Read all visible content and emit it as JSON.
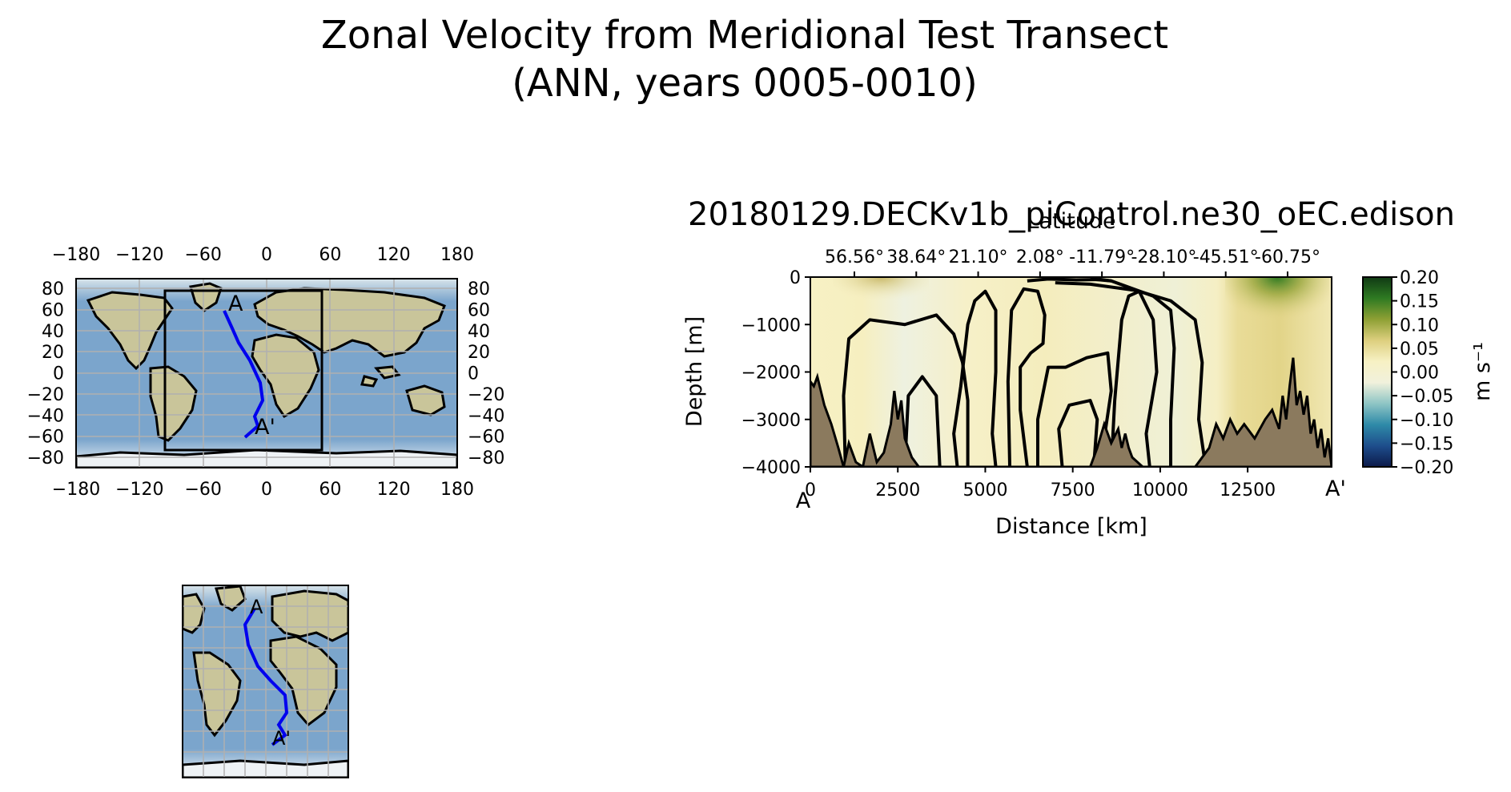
{
  "figure": {
    "title_line1": "Zonal Velocity from Meridional Test Transect",
    "title_line2": "(ANN, years 0005-0010)"
  },
  "map": {
    "lon_ticks": [
      "−180",
      "−120",
      "−60",
      "0",
      "60",
      "120",
      "180"
    ],
    "lat_ticks": [
      "80",
      "60",
      "40",
      "20",
      "0",
      "−20",
      "−40",
      "−60",
      "−80"
    ],
    "point_start_label": "A",
    "point_end_label": "A'",
    "transect_color": "#0000ee",
    "ocean_color": "#7ba5cc",
    "land_color": "#c9c59a"
  },
  "chart_data": {
    "type": "heatmap",
    "title": "20180129.DECKv1b_piControl.ne30_oEC.edison",
    "xlabel": "Distance [km]",
    "ylabel": "Depth [m]",
    "top_axis_label": "Latitude",
    "xlim": [
      0,
      14900
    ],
    "ylim": [
      -4000,
      0
    ],
    "x_ticks": [
      0,
      2500,
      5000,
      7500,
      10000,
      12500
    ],
    "x_tick_labels": [
      "0",
      "2500",
      "5000",
      "7500",
      "10000",
      "12500"
    ],
    "y_ticks": [
      0,
      -1000,
      -2000,
      -3000,
      -4000
    ],
    "y_tick_labels": [
      "0",
      "−1000",
      "−2000",
      "−3000",
      "−4000"
    ],
    "end_labels": {
      "start": "A",
      "end": "A'"
    },
    "top_tick_labels": [
      "56.56°",
      "38.64°",
      "21.10°",
      "2.08°",
      "-11.79°",
      "-28.10°",
      "-45.51°",
      "-60.75°"
    ],
    "colorbar": {
      "label": "m s⁻¹",
      "min": -0.2,
      "max": 0.2,
      "tick_labels": [
        "0.20",
        "0.15",
        "0.10",
        "0.05",
        "0.00",
        "−0.05",
        "−0.10",
        "−0.15",
        "−0.20"
      ],
      "colormap": [
        "#0c1a4a",
        "#1e4e8c",
        "#2e8aa8",
        "#8ec5c5",
        "#f1f1dc",
        "#f7f1c4",
        "#ddcf7e",
        "#8ea034",
        "#2e7a22",
        "#103a14"
      ]
    },
    "bathymetry": {
      "x": [
        0,
        100,
        200,
        300,
        400,
        600,
        800,
        950,
        1100,
        1300,
        1500,
        1700,
        1900,
        2100,
        2300,
        2400,
        2500,
        2600,
        2700,
        2900,
        3100,
        3300,
        3500,
        3700,
        3900,
        4100,
        4300,
        4500,
        5000,
        5500,
        6000,
        6500,
        7000,
        7500,
        8000,
        8200,
        8400,
        8600,
        8800,
        8900,
        9000,
        9100,
        9200,
        9500,
        10000,
        10500,
        11000,
        11400,
        11600,
        11800,
        12000,
        12200,
        12400,
        12700,
        13000,
        13200,
        13400,
        13500,
        13600,
        13700,
        13800,
        13900,
        14000,
        14100,
        14200,
        14300,
        14400,
        14500,
        14600,
        14700,
        14800,
        14900
      ],
      "depth": [
        -2200,
        -2300,
        -2100,
        -2400,
        -2700,
        -3100,
        -3600,
        -4000,
        -3500,
        -3900,
        -4000,
        -3300,
        -3900,
        -3700,
        -3100,
        -2400,
        -3000,
        -2600,
        -3400,
        -3800,
        -4000,
        -4000,
        -4000,
        -4000,
        -4000,
        -4000,
        -4000,
        -4000,
        -4000,
        -4000,
        -4000,
        -4000,
        -4000,
        -4000,
        -4000,
        -3600,
        -3100,
        -3500,
        -3200,
        -3600,
        -3300,
        -3600,
        -3800,
        -4000,
        -4000,
        -4000,
        -4000,
        -3600,
        -3100,
        -3400,
        -3000,
        -3300,
        -3100,
        -3400,
        -3000,
        -2800,
        -3200,
        -2500,
        -3000,
        -2300,
        -1700,
        -2700,
        -2400,
        -2900,
        -2500,
        -3300,
        -3000,
        -3600,
        -3200,
        -3800,
        -3400,
        -4000
      ]
    },
    "contours": [
      [
        [
          1000,
          -4000
        ],
        [
          950,
          -2500
        ],
        [
          1100,
          -1300
        ],
        [
          1700,
          -900
        ],
        [
          2700,
          -1000
        ],
        [
          3600,
          -800
        ],
        [
          4100,
          -1200
        ],
        [
          4350,
          -1800
        ],
        [
          4500,
          -2600
        ],
        [
          4500,
          -4000
        ]
      ],
      [
        [
          2700,
          -4000
        ],
        [
          2800,
          -2500
        ],
        [
          3200,
          -2100
        ],
        [
          3600,
          -2500
        ],
        [
          3700,
          -4000
        ]
      ],
      [
        [
          4200,
          -4000
        ],
        [
          4100,
          -3300
        ],
        [
          4300,
          -2300
        ],
        [
          4500,
          -1000
        ],
        [
          4700,
          -500
        ],
        [
          5000,
          -300
        ],
        [
          5300,
          -700
        ],
        [
          5300,
          -2000
        ],
        [
          5200,
          -3300
        ],
        [
          5300,
          -4000
        ]
      ],
      [
        [
          5700,
          -4000
        ],
        [
          5650,
          -2200
        ],
        [
          5750,
          -700
        ],
        [
          6100,
          -250
        ],
        [
          6500,
          -300
        ],
        [
          6700,
          -800
        ],
        [
          6650,
          -1400
        ],
        [
          6300,
          -1600
        ],
        [
          6000,
          -1900
        ],
        [
          6000,
          -2800
        ],
        [
          6200,
          -4000
        ]
      ],
      [
        [
          6500,
          -4000
        ],
        [
          6500,
          -3000
        ],
        [
          6800,
          -1900
        ],
        [
          7300,
          -1900
        ],
        [
          7900,
          -1700
        ],
        [
          8500,
          -1600
        ],
        [
          8600,
          -2400
        ],
        [
          8400,
          -3400
        ],
        [
          8500,
          -4000
        ]
      ],
      [
        [
          7200,
          -4000
        ],
        [
          7100,
          -3200
        ],
        [
          7400,
          -2700
        ],
        [
          8000,
          -2600
        ],
        [
          8200,
          -3000
        ],
        [
          8100,
          -4000
        ]
      ],
      [
        [
          6200,
          -80
        ],
        [
          6800,
          -40
        ],
        [
          7600,
          -60
        ],
        [
          8300,
          -50
        ],
        [
          8600,
          -80
        ]
      ],
      [
        [
          8600,
          -4000
        ],
        [
          8700,
          -2600
        ],
        [
          8900,
          -900
        ],
        [
          9100,
          -400
        ],
        [
          9400,
          -300
        ],
        [
          9800,
          -900
        ],
        [
          9900,
          -2000
        ],
        [
          9600,
          -3300
        ],
        [
          9700,
          -4000
        ]
      ],
      [
        [
          10300,
          -4000
        ],
        [
          10300,
          -3000
        ],
        [
          10400,
          -1500
        ],
        [
          10300,
          -700
        ],
        [
          9800,
          -400
        ],
        [
          8600,
          -80
        ],
        [
          8000,
          -40
        ]
      ],
      [
        [
          11300,
          -4000
        ],
        [
          11100,
          -3000
        ],
        [
          11200,
          -1800
        ],
        [
          11000,
          -900
        ],
        [
          10300,
          -500
        ],
        [
          9300,
          -280
        ],
        [
          8000,
          -150
        ],
        [
          7000,
          -120
        ]
      ]
    ]
  }
}
